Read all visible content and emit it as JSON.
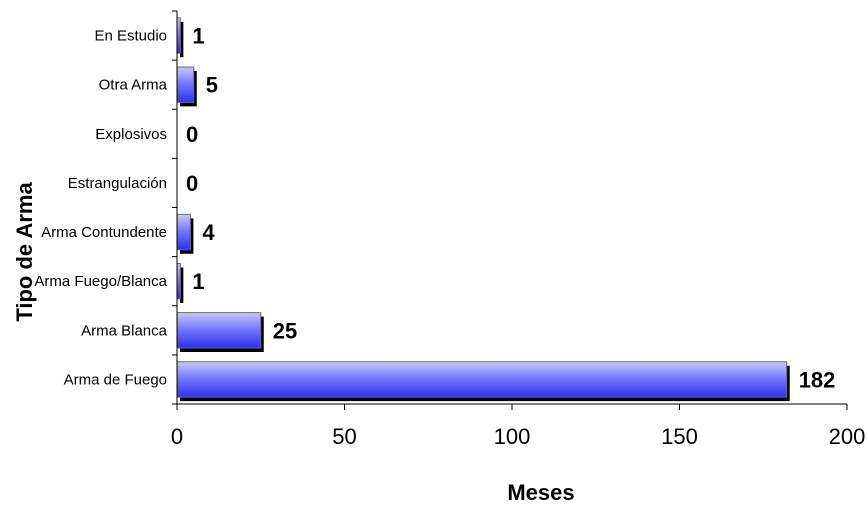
{
  "chart_data": {
    "type": "bar",
    "orientation": "horizontal",
    "title": "",
    "xlabel": "Meses",
    "ylabel": "Tipo de Arma",
    "categories": [
      "En Estudio",
      "Otra Arma",
      "Explosivos",
      "Estrangulación",
      "Arma Contundente",
      "Arma Fuego/Blanca",
      "Arma Blanca",
      "Arma de Fuego"
    ],
    "values": [
      1,
      5,
      0,
      0,
      4,
      1,
      25,
      182
    ],
    "xlim": [
      0,
      200
    ],
    "x_ticks": [
      0,
      50,
      100,
      150,
      200
    ],
    "grid": false,
    "legend": "none",
    "colors": {
      "bar_light": "#c6c8ff",
      "bar_mid": "#6f73ff",
      "bar_dark": "#2f31e6",
      "bar_outline": "#6b6b6b",
      "shadow": "#000000",
      "axis": "#000000"
    }
  }
}
